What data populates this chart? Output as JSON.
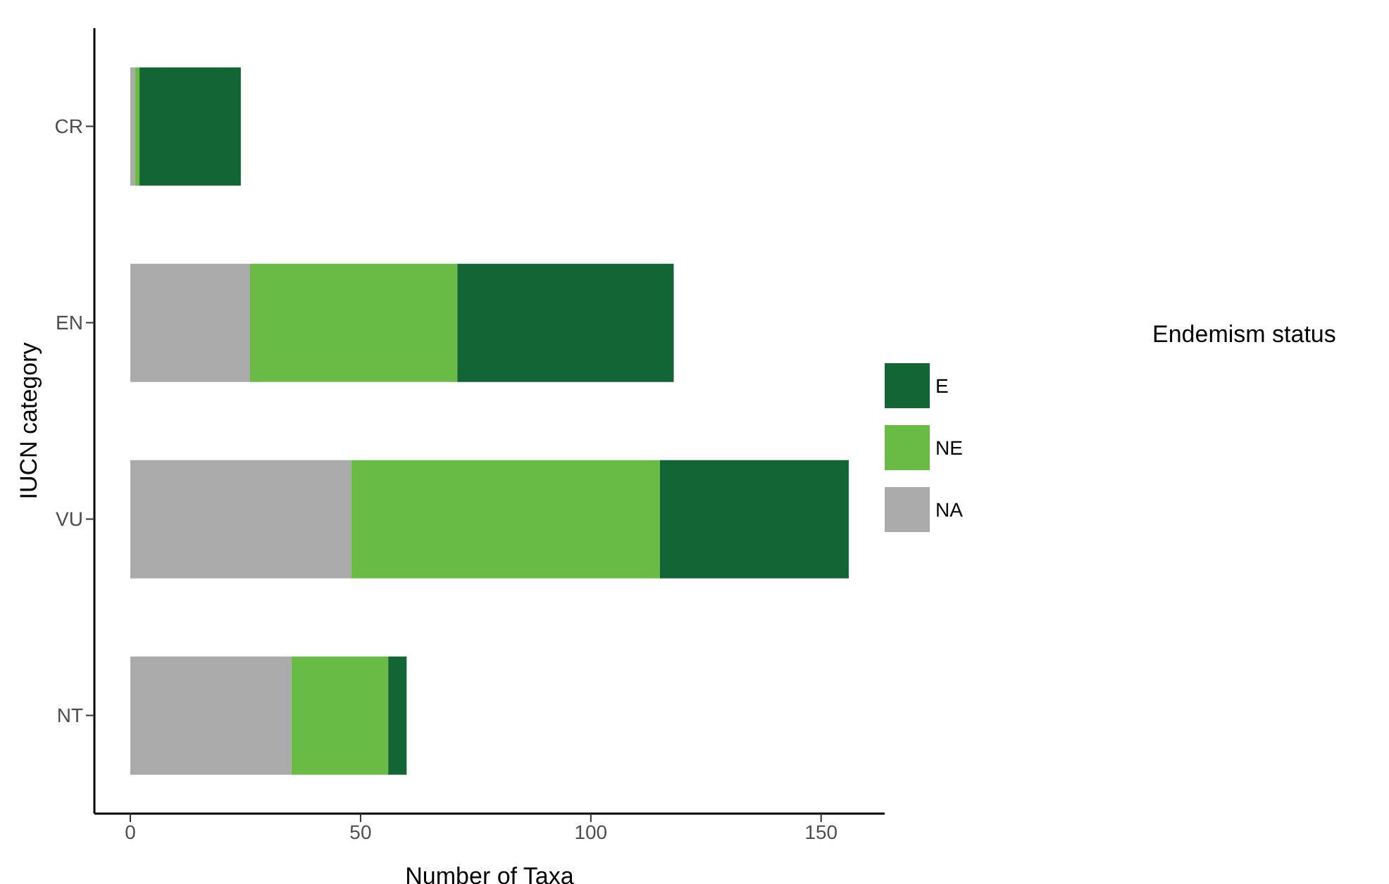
{
  "chart_data": {
    "type": "bar",
    "orientation": "horizontal",
    "stacked": true,
    "xlabel": "Number of Taxa",
    "ylabel": "IUCN category",
    "legend_title": "Endemism status",
    "legend": "right",
    "grid": false,
    "categories": [
      "CR",
      "EN",
      "VU",
      "NT"
    ],
    "series": [
      {
        "name": "NA",
        "color": "#aaaaaa",
        "values": [
          1,
          26,
          48,
          35
        ]
      },
      {
        "name": "NE",
        "color": "#6abb45",
        "values": [
          1,
          45,
          67,
          21
        ]
      },
      {
        "name": "E",
        "color": "#136535",
        "values": [
          22,
          47,
          41,
          4
        ]
      }
    ],
    "xlim": [
      -7.8,
      163.8
    ],
    "xticks": [
      0,
      50,
      100,
      150
    ]
  }
}
